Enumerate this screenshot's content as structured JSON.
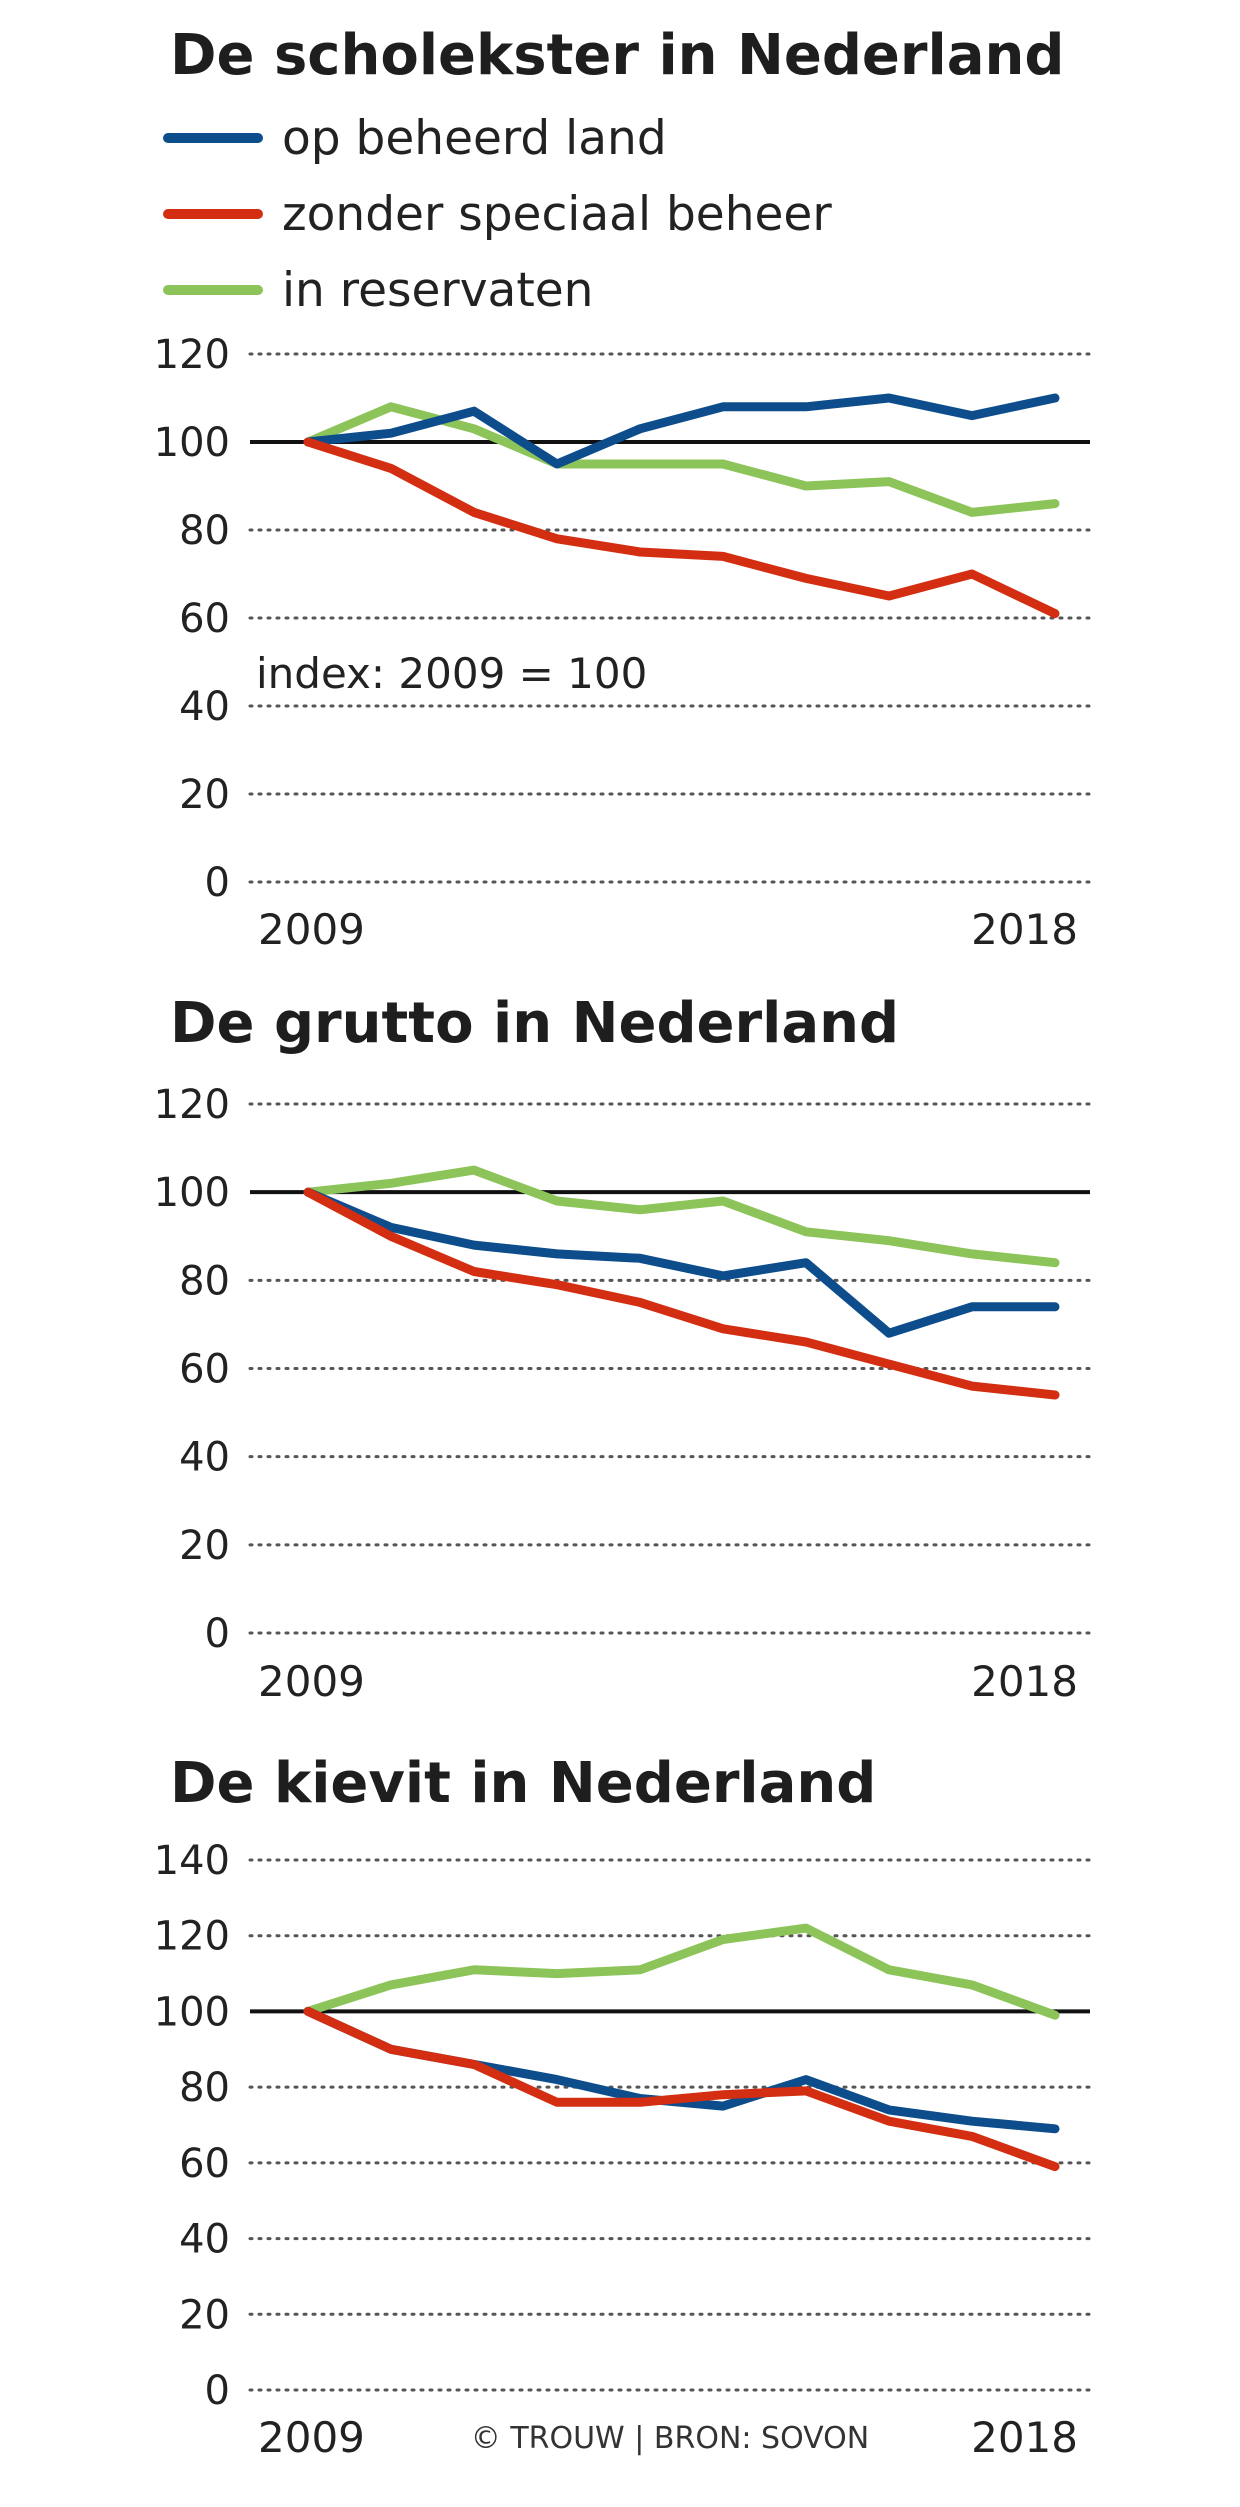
{
  "colors": {
    "blue": "#0d4d8c",
    "red": "#d42e12",
    "green": "#8cc45a"
  },
  "legend": [
    {
      "label": "op beheerd land",
      "color": "#0d4d8c"
    },
    {
      "label": "zonder speciaal beheer",
      "color": "#d42e12"
    },
    {
      "label": "in reservaten",
      "color": "#8cc45a"
    }
  ],
  "credit": "© TROUW | BRON: SOVON",
  "chart_data": [
    {
      "type": "line",
      "title": "De scholekster in Nederland",
      "annotation": "index: 2009 = 100",
      "x": [
        2009,
        2010,
        2011,
        2012,
        2013,
        2014,
        2015,
        2016,
        2017,
        2018
      ],
      "x_tick_labels": [
        "2009",
        "2018"
      ],
      "ylim": [
        0,
        120
      ],
      "yticks": [
        0,
        20,
        40,
        60,
        80,
        100,
        120
      ],
      "baseline": 100,
      "series": [
        {
          "name": "op beheerd land",
          "color": "#0d4d8c",
          "values": [
            100,
            102,
            107,
            95,
            103,
            108,
            108,
            110,
            106,
            110
          ]
        },
        {
          "name": "zonder speciaal beheer",
          "color": "#d42e12",
          "values": [
            100,
            94,
            84,
            78,
            75,
            74,
            69,
            65,
            70,
            61
          ]
        },
        {
          "name": "in reservaten",
          "color": "#8cc45a",
          "values": [
            100,
            108,
            103,
            95,
            95,
            95,
            90,
            91,
            84,
            86
          ]
        }
      ]
    },
    {
      "type": "line",
      "title": "De grutto in Nederland",
      "x": [
        2009,
        2010,
        2011,
        2012,
        2013,
        2014,
        2015,
        2016,
        2017,
        2018
      ],
      "x_tick_labels": [
        "2009",
        "2018"
      ],
      "ylim": [
        0,
        120
      ],
      "yticks": [
        0,
        20,
        40,
        60,
        80,
        100,
        120
      ],
      "baseline": 100,
      "series": [
        {
          "name": "op beheerd land",
          "color": "#0d4d8c",
          "values": [
            100,
            92,
            88,
            86,
            85,
            81,
            84,
            68,
            74,
            74
          ]
        },
        {
          "name": "zonder speciaal beheer",
          "color": "#d42e12",
          "values": [
            100,
            90,
            82,
            79,
            75,
            69,
            66,
            61,
            56,
            54
          ]
        },
        {
          "name": "in reservaten",
          "color": "#8cc45a",
          "values": [
            100,
            102,
            105,
            98,
            96,
            98,
            91,
            89,
            86,
            84
          ]
        }
      ]
    },
    {
      "type": "line",
      "title": "De kievit in Nederland",
      "x": [
        2009,
        2010,
        2011,
        2012,
        2013,
        2014,
        2015,
        2016,
        2017,
        2018
      ],
      "x_tick_labels": [
        "2009",
        "2018"
      ],
      "ylim": [
        0,
        140
      ],
      "yticks": [
        0,
        20,
        40,
        60,
        80,
        100,
        120,
        140
      ],
      "baseline": 100,
      "series": [
        {
          "name": "op beheerd land",
          "color": "#0d4d8c",
          "values": [
            100,
            90,
            86,
            82,
            77,
            75,
            82,
            74,
            71,
            69
          ]
        },
        {
          "name": "zonder speciaal beheer",
          "color": "#d42e12",
          "values": [
            100,
            90,
            86,
            76,
            76,
            78,
            79,
            71,
            67,
            59
          ]
        },
        {
          "name": "in reservaten",
          "color": "#8cc45a",
          "values": [
            100,
            107,
            111,
            110,
            111,
            119,
            122,
            111,
            107,
            99
          ]
        }
      ]
    }
  ]
}
